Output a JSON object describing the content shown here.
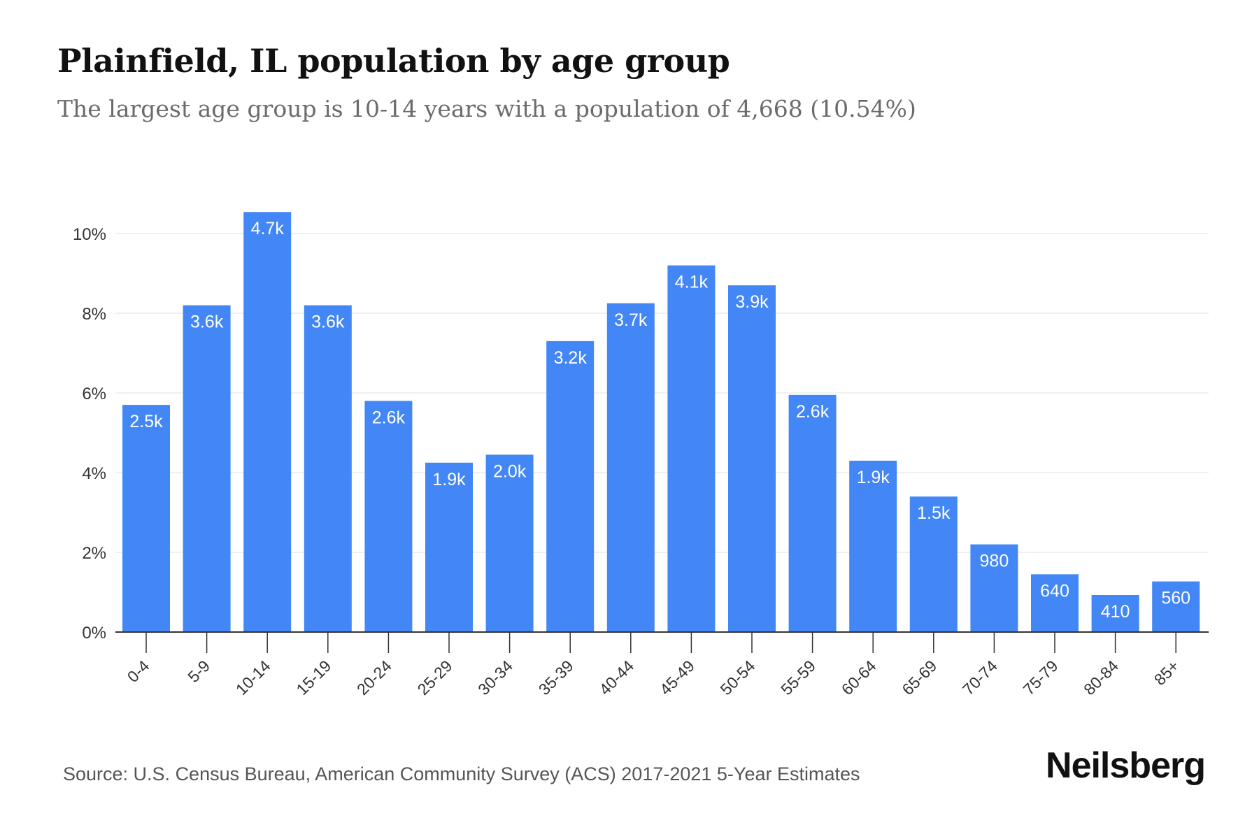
{
  "title": "Plainfield, IL population by age group",
  "subtitle": "The largest age group is 10-14 years with a population of 4,668 (10.54%)",
  "source": "Source: U.S. Census Bureau, American Community Survey (ACS) 2017-2021 5-Year Estimates",
  "brand": "Neilsberg",
  "colors": {
    "bar": "#4287f5",
    "grid": "#ececec",
    "axis": "#333333",
    "bar_label": "#ffffff"
  },
  "chart_data": {
    "type": "bar",
    "categories": [
      "0-4",
      "5-9",
      "10-14",
      "15-19",
      "20-24",
      "25-29",
      "30-34",
      "35-39",
      "40-44",
      "45-49",
      "50-54",
      "55-59",
      "60-64",
      "65-69",
      "70-74",
      "75-79",
      "80-84",
      "85+"
    ],
    "values": [
      5.7,
      8.2,
      10.54,
      8.2,
      5.8,
      4.25,
      4.45,
      7.3,
      8.25,
      9.2,
      8.7,
      5.95,
      4.3,
      3.4,
      2.2,
      1.45,
      0.93,
      1.27
    ],
    "data_labels": [
      "2.5k",
      "3.6k",
      "4.7k",
      "3.6k",
      "2.6k",
      "1.9k",
      "2.0k",
      "3.2k",
      "3.7k",
      "4.1k",
      "3.9k",
      "2.6k",
      "1.9k",
      "1.5k",
      "980",
      "640",
      "410",
      "560"
    ],
    "y_ticks": [
      0,
      2,
      4,
      6,
      8,
      10
    ],
    "y_tick_labels": [
      "0%",
      "2%",
      "4%",
      "6%",
      "8%",
      "10%"
    ],
    "ylim": [
      0,
      10.54
    ],
    "ylabel": "",
    "xlabel": "",
    "grid": true
  }
}
